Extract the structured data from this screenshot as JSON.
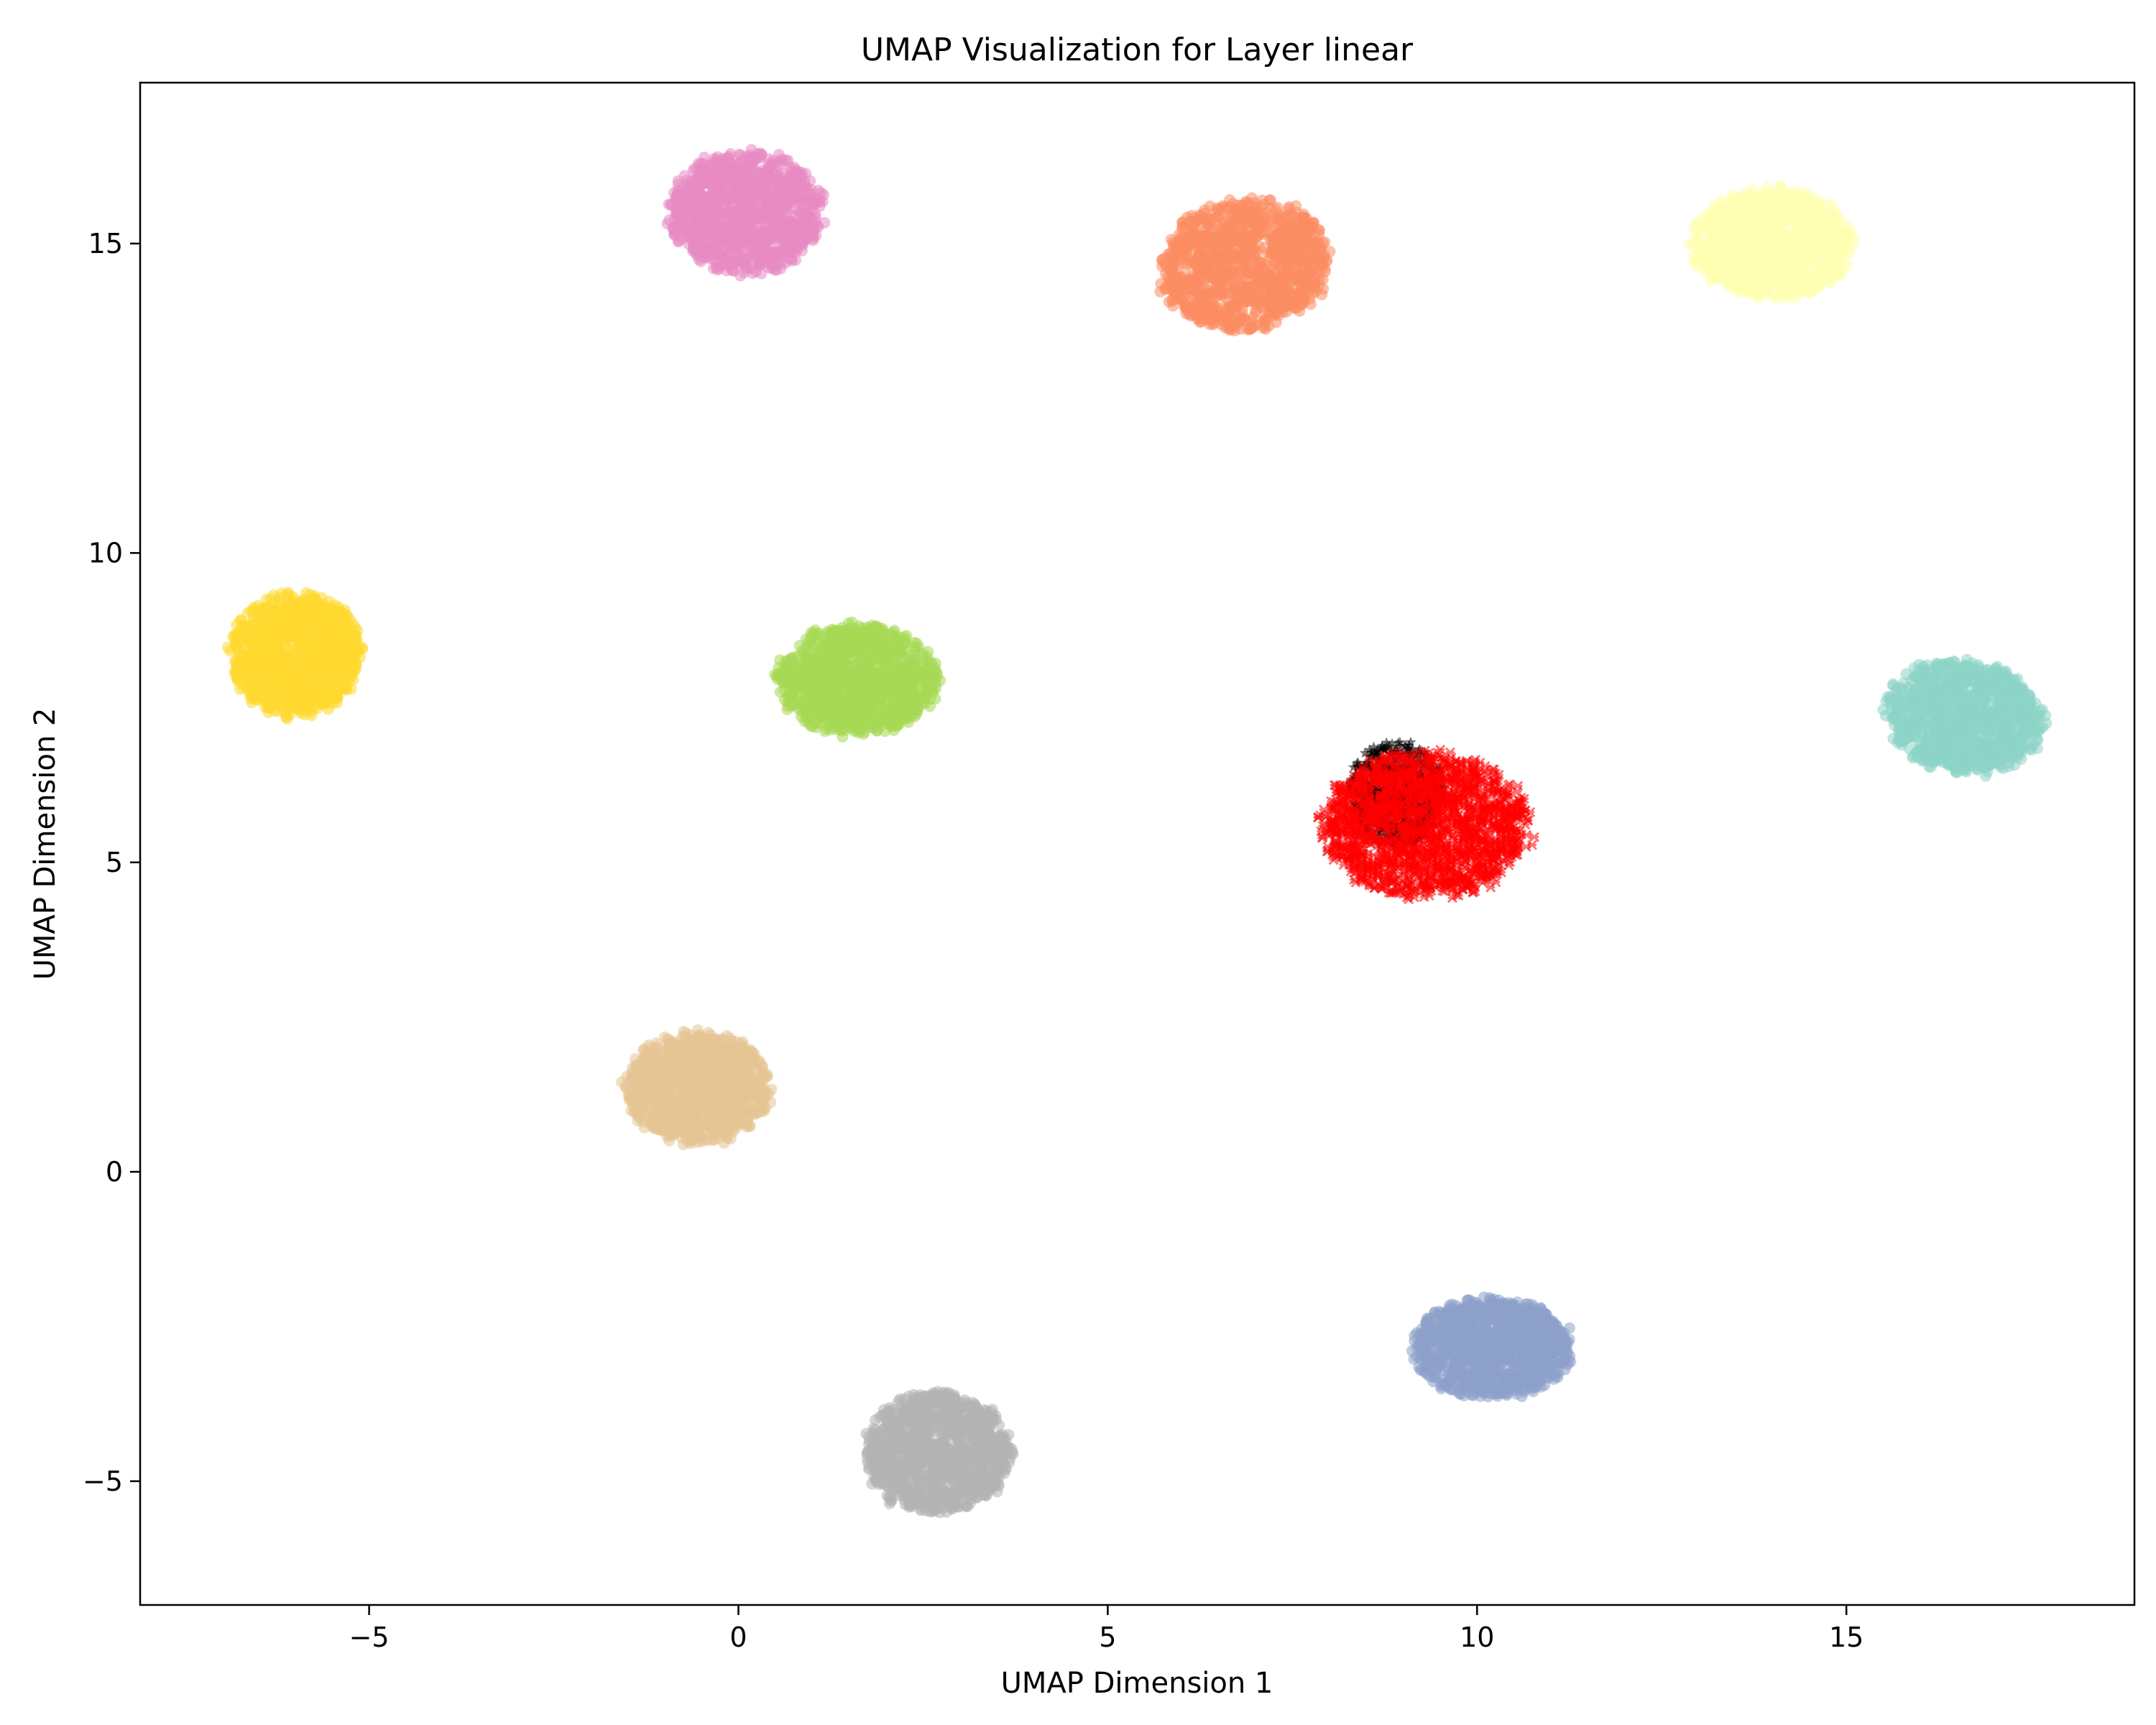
{
  "chart_data": {
    "type": "scatter",
    "title": "UMAP Visualization for Layer linear",
    "xlabel": "UMAP Dimension 1",
    "ylabel": "UMAP Dimension 2",
    "xlim": [
      -8.1,
      18.9
    ],
    "ylim": [
      -7.0,
      17.6
    ],
    "xticks": [
      -5,
      0,
      5,
      10,
      15
    ],
    "yticks": [
      -5,
      0,
      5,
      10,
      15
    ],
    "xtick_labels": [
      "−5",
      "0",
      "5",
      "10",
      "15"
    ],
    "ytick_labels": [
      "−5",
      "0",
      "5",
      "10",
      "15"
    ],
    "grid": false,
    "legend": false,
    "marker_alpha": 0.55,
    "clusters": [
      {
        "center": [
          0.1,
          15.5
        ],
        "spread": [
          1.1,
          1.05
        ],
        "color": "#e78ac3",
        "marker": "circle",
        "count": 1100
      },
      {
        "center": [
          6.85,
          14.65
        ],
        "spread": [
          1.25,
          1.1
        ],
        "color": "#fc8d62",
        "marker": "circle",
        "count": 1100,
        "tilt": 0.45
      },
      {
        "center": [
          14.0,
          15.0
        ],
        "spread": [
          1.15,
          0.95
        ],
        "color": "#ffffb3",
        "marker": "circle",
        "count": 1100
      },
      {
        "center": [
          -6.0,
          8.35
        ],
        "spread": [
          0.95,
          1.05
        ],
        "color": "#ffd92f",
        "marker": "circle",
        "count": 1100
      },
      {
        "center": [
          1.6,
          7.95
        ],
        "spread": [
          1.15,
          0.95
        ],
        "color": "#a6d854",
        "marker": "circle",
        "count": 1100
      },
      {
        "center": [
          16.6,
          7.35
        ],
        "spread": [
          1.15,
          0.95
        ],
        "color": "#8dd3c7",
        "marker": "circle",
        "count": 1100,
        "tilt": -0.3
      },
      {
        "center": [
          -0.55,
          1.35
        ],
        "spread": [
          1.05,
          0.95
        ],
        "color": "#e5c494",
        "marker": "circle",
        "count": 1100
      },
      {
        "center": [
          10.2,
          -2.85
        ],
        "spread": [
          1.15,
          0.85
        ],
        "color": "#8da0cb",
        "marker": "circle",
        "count": 1100
      },
      {
        "center": [
          2.7,
          -4.55
        ],
        "spread": [
          1.05,
          1.05
        ],
        "color": "#b3b3b3",
        "marker": "circle",
        "count": 1100
      }
    ],
    "overlay": [
      {
        "center": [
          8.9,
          6.1
        ],
        "spread": [
          0.7,
          0.9
        ],
        "color": "#000000",
        "marker": "star",
        "count": 650
      },
      {
        "center": [
          9.3,
          5.6
        ],
        "spread": [
          1.5,
          1.25
        ],
        "color": "#ff0000",
        "marker": "x",
        "count": 1900
      }
    ]
  }
}
